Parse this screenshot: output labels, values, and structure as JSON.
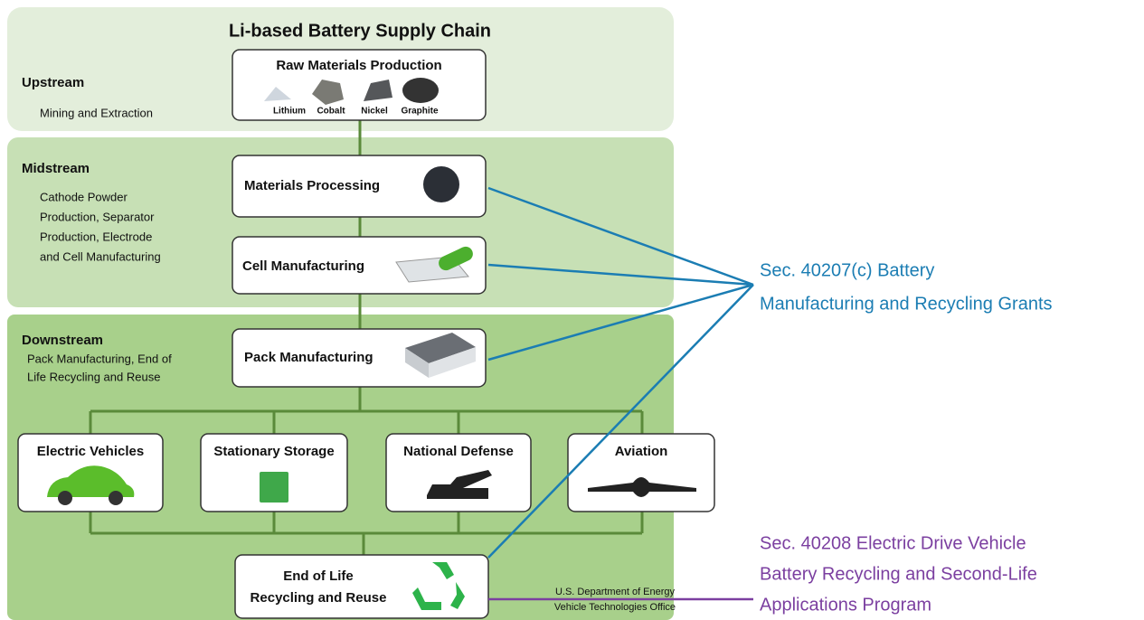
{
  "title": "Li-based Battery Supply Chain",
  "sections": [
    {
      "label": "Upstream",
      "description": [
        "Mining and Extraction"
      ]
    },
    {
      "label": "Midstream",
      "description": [
        "Cathode Powder",
        "Production, Separator",
        "Production, Electrode",
        "and Cell Manufacturing"
      ]
    },
    {
      "label": "Downstream",
      "description": [
        "Pack Manufacturing, End of",
        "Life Recycling and Reuse"
      ]
    }
  ],
  "raw_materials": {
    "label": "Raw Materials Production",
    "materials": [
      "Lithium",
      "Cobalt",
      "Nickel",
      "Graphite"
    ]
  },
  "stages": [
    "Materials Processing",
    "Cell Manufacturing",
    "Pack Manufacturing"
  ],
  "applications": [
    "Electric Vehicles",
    "Stationary Storage",
    "National Defense",
    "Aviation"
  ],
  "end_of_life": [
    "End of Life",
    "Recycling and Reuse"
  ],
  "credit": [
    "U.S. Department of Energy",
    "Vehicle Technologies Office"
  ],
  "programs": [
    {
      "lines": [
        "Sec. 40207(c) Battery",
        "Manufacturing and Recycling Grants"
      ]
    },
    {
      "lines": [
        "Sec. 40208 Electric Drive Vehicle",
        "Battery Recycling and Second-Life",
        "Applications Program"
      ]
    }
  ]
}
